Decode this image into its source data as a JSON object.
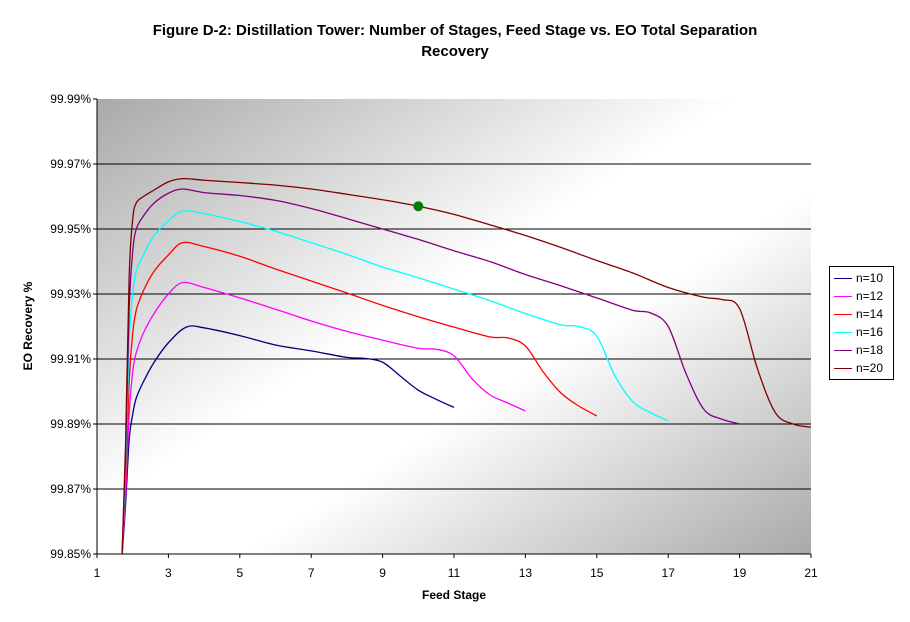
{
  "chart_data": {
    "type": "line",
    "title_line1": "Figure D-2: Distillation Tower:  Number of Stages, Feed Stage vs. EO Total Separation",
    "title_line2": "Recovery",
    "xlabel": "Feed Stage",
    "ylabel": "EO Recovery %",
    "xlim": [
      1,
      21
    ],
    "ylim": [
      99.85,
      99.99
    ],
    "xticks": [
      1,
      3,
      5,
      7,
      9,
      11,
      13,
      15,
      17,
      19,
      21
    ],
    "xtick_labels": [
      "1",
      "3",
      "5",
      "7",
      "9",
      "11",
      "13",
      "15",
      "17",
      "19",
      "21"
    ],
    "yticks": [
      99.85,
      99.87,
      99.89,
      99.91,
      99.93,
      99.95,
      99.97,
      99.99
    ],
    "ytick_labels": [
      "99.85%",
      "99.87%",
      "99.89%",
      "99.91%",
      "99.93%",
      "99.95%",
      "99.97%",
      "99.99%"
    ],
    "grid": "horizontal",
    "legend_position": "right",
    "background": "gradient-gray",
    "series": [
      {
        "name": "n=10",
        "color": "#000080",
        "x": [
          1.7,
          1.8,
          1.9,
          2.0,
          2.1,
          2.3,
          2.6,
          3.0,
          3.5,
          4.0,
          5.0,
          6.0,
          7.0,
          8.0,
          8.5,
          9.0,
          9.5,
          10.0,
          10.5,
          11.0
        ],
        "y": [
          99.849,
          99.865,
          99.885,
          99.893,
          99.898,
          99.903,
          99.909,
          99.915,
          99.9198,
          99.9196,
          99.9172,
          99.9143,
          99.9125,
          99.9105,
          99.9102,
          99.909,
          99.9047,
          99.9004,
          99.8976,
          99.8951
        ]
      },
      {
        "name": "n=12",
        "color": "#FF00FF",
        "x": [
          1.7,
          1.8,
          1.9,
          2.0,
          2.1,
          2.3,
          2.6,
          3.0,
          3.4,
          4.0,
          5.0,
          6.0,
          7.0,
          8.0,
          9.0,
          10.0,
          10.5,
          11.0,
          11.5,
          12.0,
          12.5,
          13.0
        ],
        "y": [
          99.849,
          99.868,
          99.893,
          99.906,
          99.912,
          99.918,
          99.924,
          99.93,
          99.9335,
          99.932,
          99.9288,
          99.9253,
          99.9217,
          99.9185,
          99.9158,
          99.9133,
          99.913,
          99.911,
          99.904,
          99.899,
          99.8965,
          99.894
        ]
      },
      {
        "name": "n=14",
        "color": "#FF0000",
        "x": [
          1.7,
          1.8,
          1.9,
          2.0,
          2.1,
          2.3,
          2.6,
          3.0,
          3.4,
          4.0,
          5.0,
          6.0,
          7.0,
          8.0,
          9.0,
          10.0,
          11.0,
          12.0,
          12.5,
          13.0,
          13.5,
          14.0,
          14.5,
          15.0
        ],
        "y": [
          99.849,
          99.872,
          99.903,
          99.918,
          99.925,
          99.931,
          99.937,
          99.942,
          99.9458,
          99.9446,
          99.9416,
          99.9377,
          99.934,
          99.9303,
          99.9265,
          99.923,
          99.9198,
          99.9168,
          99.9165,
          99.914,
          99.906,
          99.8995,
          99.8955,
          99.8925
        ]
      },
      {
        "name": "n=16",
        "color": "#00FFFF",
        "x": [
          1.7,
          1.8,
          1.9,
          2.0,
          2.1,
          2.3,
          2.6,
          3.0,
          3.4,
          4.0,
          5.0,
          6.0,
          7.0,
          8.0,
          9.0,
          10.0,
          11.0,
          12.0,
          13.0,
          14.0,
          14.5,
          15.0,
          15.5,
          16.0,
          16.5,
          17.0
        ],
        "y": [
          99.849,
          99.876,
          99.915,
          99.93,
          99.937,
          99.942,
          99.948,
          99.9525,
          99.9555,
          99.9547,
          99.9523,
          99.9493,
          99.9458,
          99.9422,
          99.9383,
          99.935,
          99.9315,
          99.928,
          99.924,
          99.9205,
          99.92,
          99.917,
          99.905,
          99.897,
          99.8935,
          99.891
        ]
      },
      {
        "name": "n=18",
        "color": "#800080",
        "x": [
          1.7,
          1.8,
          1.9,
          2.0,
          2.1,
          2.3,
          2.6,
          3.0,
          3.4,
          4.0,
          5.0,
          6.0,
          7.0,
          8.0,
          9.0,
          10.0,
          11.0,
          12.0,
          13.0,
          14.0,
          15.0,
          16.0,
          16.5,
          17.0,
          17.5,
          18.0,
          18.5,
          19.0
        ],
        "y": [
          99.849,
          99.88,
          99.925,
          99.943,
          99.95,
          99.954,
          99.958,
          99.961,
          99.9623,
          99.9612,
          99.9603,
          99.9588,
          99.9563,
          99.9532,
          99.95,
          99.9468,
          99.9433,
          99.94,
          99.936,
          99.9325,
          99.9288,
          99.925,
          99.9242,
          99.92,
          99.9055,
          99.8945,
          99.8915,
          99.89
        ]
      },
      {
        "name": "n=20",
        "color": "#800000",
        "x": [
          1.7,
          1.8,
          1.9,
          2.0,
          2.1,
          2.3,
          2.6,
          3.0,
          3.4,
          4.0,
          5.0,
          6.0,
          7.0,
          8.0,
          9.0,
          10.0,
          11.0,
          12.0,
          13.0,
          14.0,
          15.0,
          16.0,
          17.0,
          18.0,
          18.5,
          19.0,
          19.5,
          20.0,
          20.5,
          21.0
        ],
        "y": [
          99.849,
          99.884,
          99.935,
          99.953,
          99.958,
          99.96,
          99.962,
          99.9645,
          99.9655,
          99.965,
          99.9643,
          99.9635,
          99.9623,
          99.9607,
          99.959,
          99.957,
          99.9545,
          99.9513,
          99.948,
          99.9443,
          99.9403,
          99.9365,
          99.932,
          99.929,
          99.9283,
          99.9255,
          99.907,
          99.8935,
          99.89,
          99.889
        ]
      }
    ],
    "highlight_point": {
      "x": 10.0,
      "y": 99.957,
      "color": "#008000"
    }
  }
}
